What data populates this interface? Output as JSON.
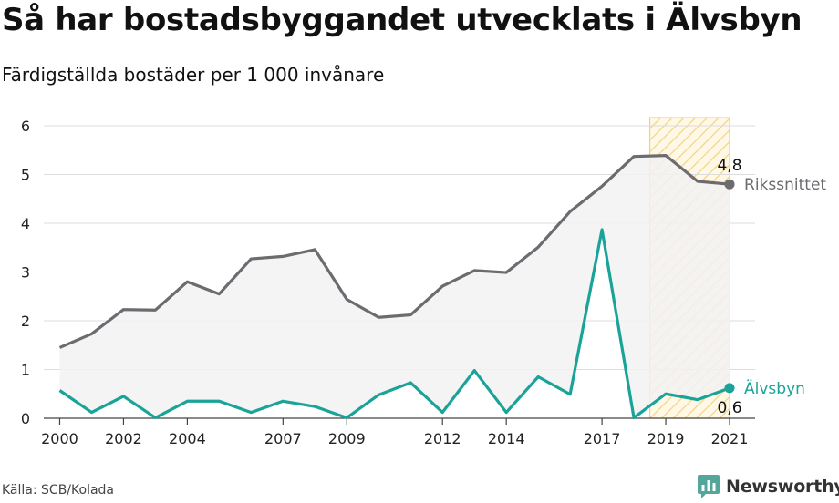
{
  "title": "Så har bostadsbyggandet utvecklats i Älvsbyn",
  "subtitle": "Färdigställda bostäder per 1 000 invånare",
  "source": "Källa: SCB/Kolada",
  "brand": {
    "name": "Newsworthy",
    "logo_icon": "chart-bubble-icon",
    "color": "#54a59a"
  },
  "chart_data": {
    "type": "line",
    "x": [
      2000,
      2001,
      2002,
      2003,
      2004,
      2005,
      2006,
      2007,
      2008,
      2009,
      2010,
      2011,
      2012,
      2013,
      2014,
      2015,
      2016,
      2017,
      2018,
      2019,
      2020,
      2021
    ],
    "xticks": [
      "2000",
      "2002",
      "2004",
      "2007",
      "2009",
      "2012",
      "2014",
      "2017",
      "2019",
      "2021"
    ],
    "yticks": [
      "0",
      "1",
      "2",
      "3",
      "4",
      "5",
      "6"
    ],
    "ylim": [
      0,
      6
    ],
    "xlim": [
      1999.5,
      2021.8
    ],
    "grid": true,
    "highlight_range": [
      2018.5,
      2021
    ],
    "series": [
      {
        "name": "Rikssnittet",
        "color": "#6b6b70",
        "values": [
          1.45,
          1.73,
          2.23,
          2.22,
          2.8,
          2.55,
          3.27,
          3.32,
          3.46,
          2.44,
          2.07,
          2.12,
          2.71,
          3.03,
          2.99,
          3.51,
          4.24,
          4.76,
          5.37,
          5.39,
          4.86,
          4.8
        ],
        "end_label": "4,8"
      },
      {
        "name": "Älvsbyn",
        "color": "#1aa398",
        "values": [
          0.57,
          0.12,
          0.45,
          0.01,
          0.35,
          0.35,
          0.12,
          0.35,
          0.24,
          0.01,
          0.48,
          0.73,
          0.12,
          0.98,
          0.12,
          0.85,
          0.49,
          3.87,
          0.01,
          0.5,
          0.38,
          0.62
        ],
        "end_label": "0,6"
      }
    ]
  }
}
